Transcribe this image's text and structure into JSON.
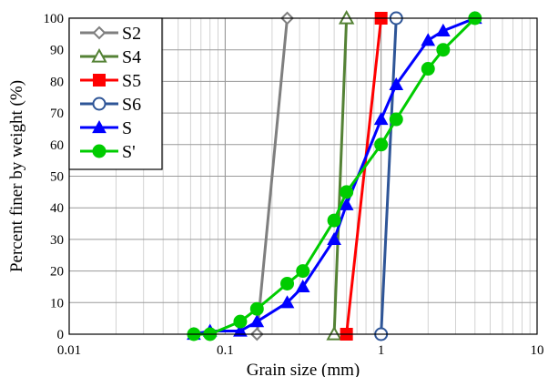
{
  "chart_data": {
    "type": "line",
    "title": "",
    "xlabel": "Grain size (mm)",
    "ylabel": "Percent finer by weight (%)",
    "x_scale": "log",
    "xlim": [
      0.01,
      10
    ],
    "ylim": [
      0,
      100
    ],
    "x_ticks": [
      "0.01",
      "0.1",
      "1",
      "10"
    ],
    "y_ticks": [
      "0",
      "10",
      "20",
      "30",
      "40",
      "50",
      "60",
      "70",
      "80",
      "90",
      "100"
    ],
    "grid": true,
    "legend_position": "top-left",
    "series": [
      {
        "name": "S2",
        "color": "#7f7f7f",
        "marker": "diamond-open",
        "x": [
          0.16,
          0.25
        ],
        "y": [
          0,
          100
        ]
      },
      {
        "name": "S4",
        "color": "#548235",
        "marker": "triangle-open",
        "x": [
          0.5,
          0.6
        ],
        "y": [
          0,
          100
        ]
      },
      {
        "name": "S5",
        "color": "#ff0000",
        "marker": "square-filled",
        "x": [
          0.6,
          1.0
        ],
        "y": [
          0,
          100
        ]
      },
      {
        "name": "S6",
        "color": "#2e5597",
        "marker": "circle-open",
        "x": [
          1.0,
          1.25
        ],
        "y": [
          0,
          100
        ]
      },
      {
        "name": "S",
        "color": "#0000ff",
        "marker": "triangle-filled",
        "x": [
          0.063,
          0.08,
          0.125,
          0.16,
          0.25,
          0.315,
          0.5,
          0.6,
          1.0,
          1.25,
          2.0,
          2.5,
          4.0
        ],
        "y": [
          0,
          1,
          1,
          4,
          10,
          15,
          30,
          41,
          68,
          79,
          93,
          96,
          100
        ]
      },
      {
        "name": "S'",
        "color": "#00cc00",
        "marker": "circle-filled",
        "x": [
          0.063,
          0.08,
          0.125,
          0.16,
          0.25,
          0.315,
          0.5,
          0.6,
          1.0,
          1.25,
          2.0,
          2.5,
          4.0
        ],
        "y": [
          0,
          0,
          4,
          8,
          16,
          20,
          36,
          45,
          60,
          68,
          84,
          90,
          100
        ]
      }
    ]
  }
}
